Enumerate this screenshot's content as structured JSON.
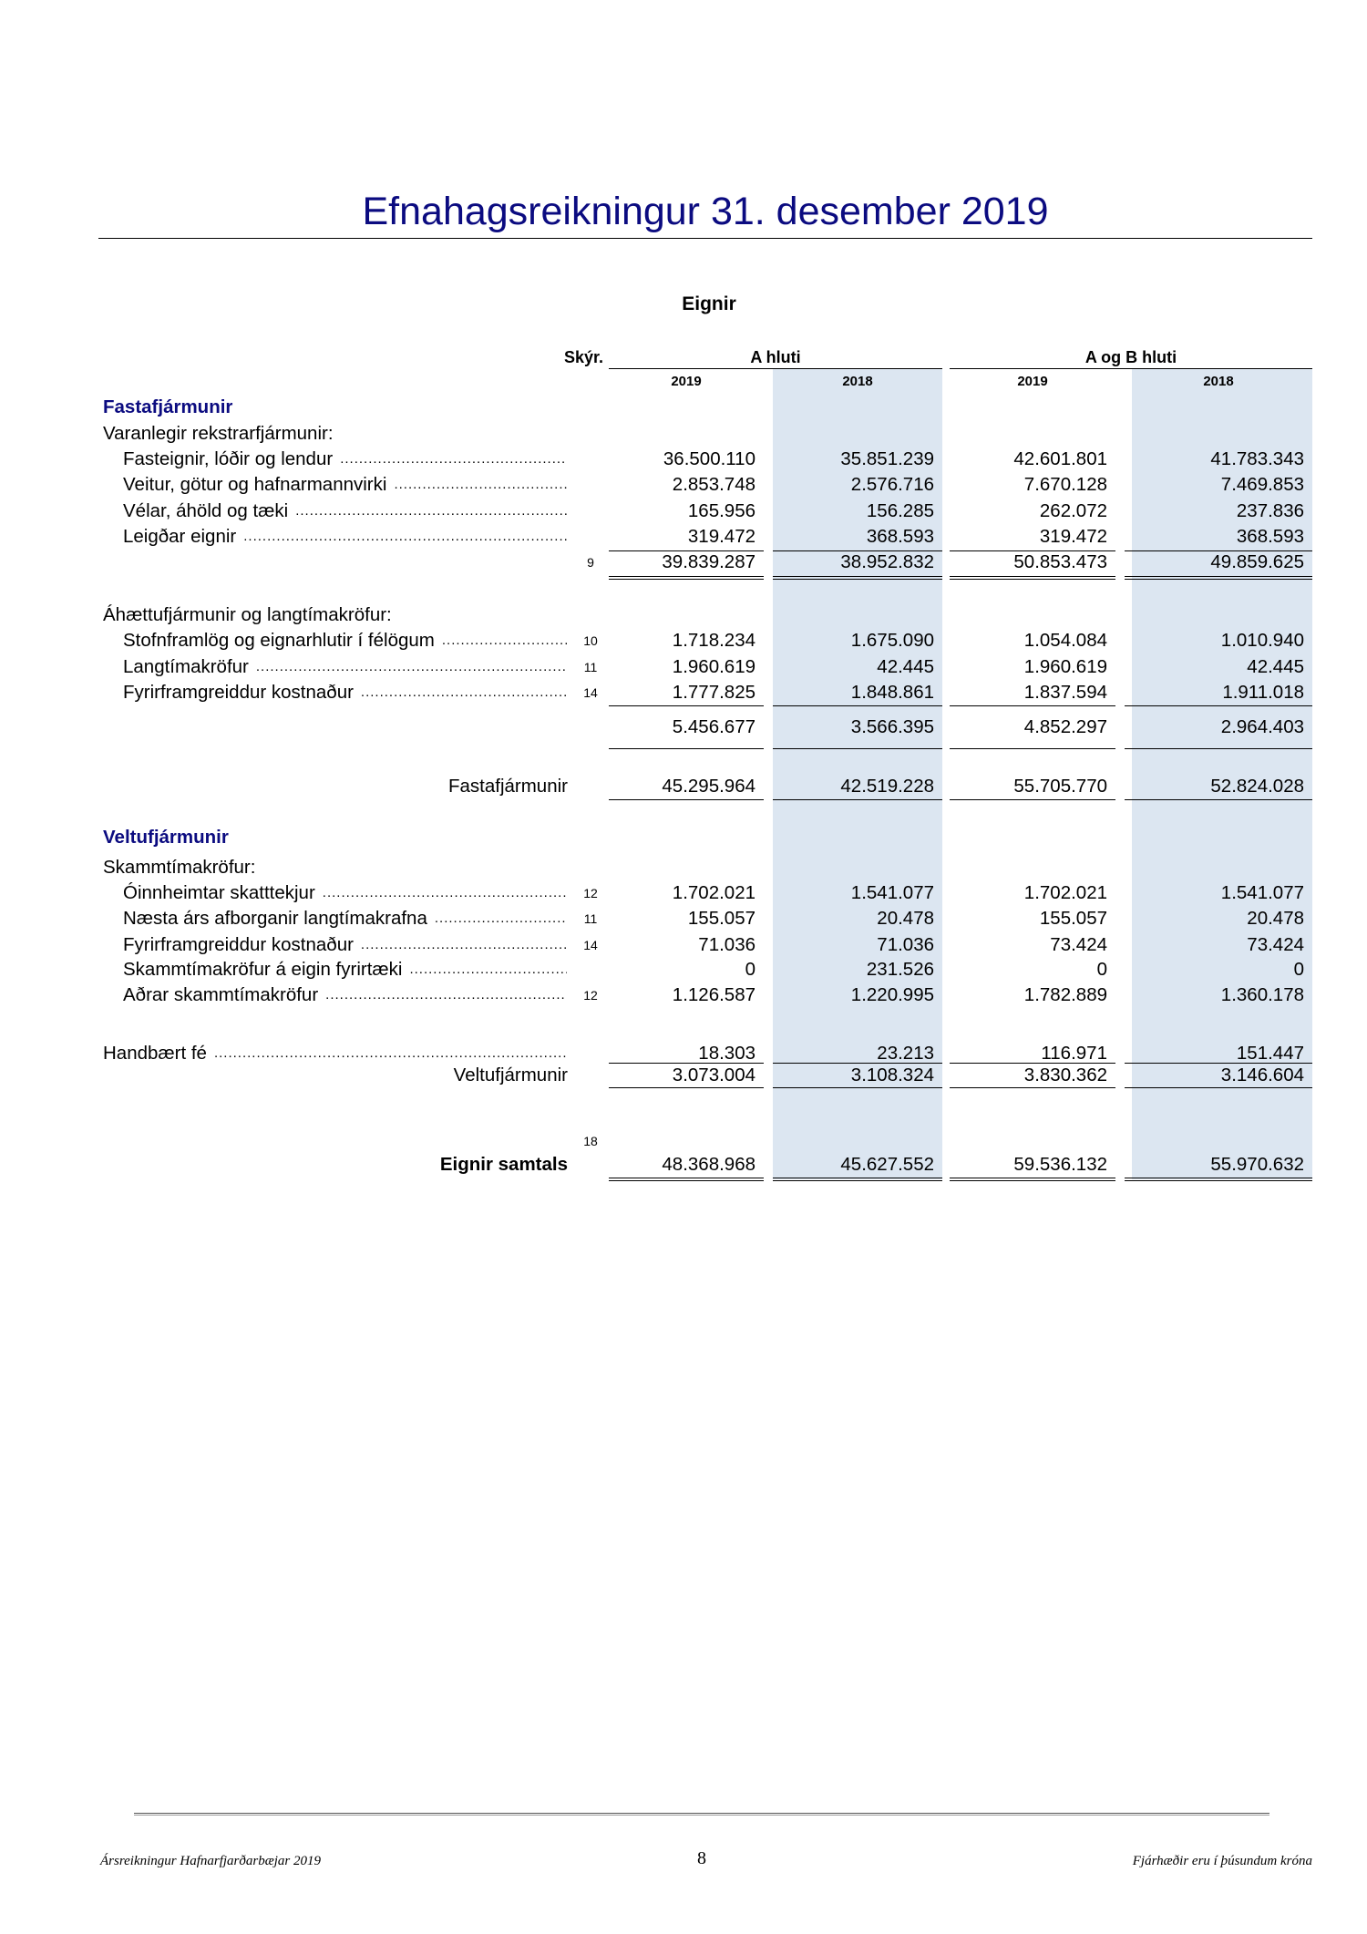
{
  "title": "Efnahagsreikningur 31. desember 2019",
  "section": "Eignir",
  "header": {
    "note_label": "Skýr.",
    "groups": [
      "A hluti",
      "A og B hluti"
    ],
    "years": [
      "2019",
      "2018",
      "2019",
      "2018"
    ]
  },
  "colors": {
    "title": "#0b0b80",
    "shade": "#dce6f1"
  },
  "rows": [
    {
      "type": "heading",
      "label": "Fastafjármunir"
    },
    {
      "type": "group",
      "label": "Varanlegir rekstrarfjármunir:"
    },
    {
      "type": "item",
      "label": "Fasteignir, lóðir og lendur",
      "note": "",
      "values": [
        "36.500.110",
        "35.851.239",
        "42.601.801",
        "41.783.343"
      ]
    },
    {
      "type": "item",
      "label": "Veitur, götur og hafnarmannvirki",
      "note": "",
      "values": [
        "2.853.748",
        "2.576.716",
        "7.670.128",
        "7.469.853"
      ]
    },
    {
      "type": "item",
      "label": "Vélar, áhöld og tæki",
      "note": "",
      "values": [
        "165.956",
        "156.285",
        "262.072",
        "237.836"
      ]
    },
    {
      "type": "item",
      "label": "Leigðar eignir",
      "note": "",
      "values": [
        "319.472",
        "368.593",
        "319.472",
        "368.593"
      ]
    },
    {
      "type": "subtotal",
      "label": "",
      "note": "9",
      "values": [
        "39.839.287",
        "38.952.832",
        "50.853.473",
        "49.859.625"
      ]
    },
    {
      "type": "group",
      "label": "Áhættufjármunir og langtímakröfur:"
    },
    {
      "type": "item",
      "label": "Stofnframlög og eignarhlutir í félögum",
      "note": "10",
      "values": [
        "1.718.234",
        "1.675.090",
        "1.054.084",
        "1.010.940"
      ]
    },
    {
      "type": "item",
      "label": "Langtímakröfur",
      "note": "11",
      "values": [
        "1.960.619",
        "42.445",
        "1.960.619",
        "42.445"
      ]
    },
    {
      "type": "item",
      "label": "Fyrirframgreiddur kostnaður",
      "note": "14",
      "values": [
        "1.777.825",
        "1.848.861",
        "1.837.594",
        "1.911.018"
      ]
    },
    {
      "type": "subtotal",
      "label": "",
      "note": "",
      "values": [
        "5.456.677",
        "3.566.395",
        "4.852.297",
        "2.964.403"
      ]
    },
    {
      "type": "total",
      "label": "Fastafjármunir",
      "note": "",
      "values": [
        "45.295.964",
        "42.519.228",
        "55.705.770",
        "52.824.028"
      ]
    },
    {
      "type": "heading",
      "label": "Veltufjármunir"
    },
    {
      "type": "group",
      "label": "Skammtímakröfur:"
    },
    {
      "type": "item",
      "label": "Óinnheimtar skatttekjur",
      "note": "12",
      "values": [
        "1.702.021",
        "1.541.077",
        "1.702.021",
        "1.541.077"
      ]
    },
    {
      "type": "item",
      "label": "Næsta árs afborganir langtímakrafna",
      "note": "11",
      "values": [
        "155.057",
        "20.478",
        "155.057",
        "20.478"
      ]
    },
    {
      "type": "item",
      "label": "Fyrirframgreiddur kostnaður",
      "note": "14",
      "values": [
        "71.036",
        "71.036",
        "73.424",
        "73.424"
      ]
    },
    {
      "type": "item",
      "label": "Skammtímakröfur á eigin fyrirtæki",
      "note": "",
      "values": [
        "0",
        "231.526",
        "0",
        "0"
      ]
    },
    {
      "type": "item",
      "label": "Aðrar skammtímakröfur",
      "note": "12",
      "values": [
        "1.126.587",
        "1.220.995",
        "1.782.889",
        "1.360.178"
      ]
    },
    {
      "type": "item-flush",
      "label": "Handbært fé",
      "note": "",
      "values": [
        "18.303",
        "23.213",
        "116.971",
        "151.447"
      ]
    },
    {
      "type": "total",
      "label": "Veltufjármunir",
      "note": "",
      "values": [
        "3.073.004",
        "3.108.324",
        "3.830.362",
        "3.146.604"
      ]
    },
    {
      "type": "note-only",
      "label": "",
      "note": "18"
    },
    {
      "type": "grand-total",
      "label": "Eignir samtals",
      "note": "",
      "values": [
        "48.368.968",
        "45.627.552",
        "59.536.132",
        "55.970.632"
      ]
    }
  ],
  "footer": {
    "left": "Ársreikningur Hafnarfjarðarbæjar 2019",
    "page": "8",
    "right": "Fjárhæðir eru í þúsundum króna"
  }
}
